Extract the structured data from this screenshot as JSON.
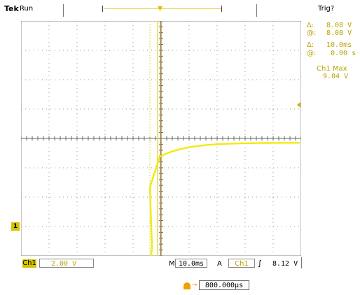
{
  "header": {
    "brand": "Tek",
    "status": "Run",
    "trigger_status": "Trig?"
  },
  "readouts": {
    "delta_label": "Δ:",
    "at_label": "@:",
    "voltage_delta": "8.08 V",
    "voltage_at": "8.08 V",
    "time_delta": "10.0ms",
    "time_at": "0.00 s",
    "measurement_label": "Ch1 Max",
    "measurement_value": "9.04 V"
  },
  "markers": {
    "trigger_marker": "T",
    "ground_marker": "1"
  },
  "bottom_bar": {
    "channel_label": "Ch1",
    "volts_per_div": "2.00 V",
    "timebase_prefix": "M",
    "timebase": "10.0ms",
    "trigger_mode": "A",
    "trigger_source": "Ch1",
    "trigger_slope": "∫",
    "trigger_level": "8.12 V"
  },
  "trigger_position": {
    "value": "800.000µs"
  },
  "colors": {
    "trace": "#f2ea10",
    "cursor": "#e6d84a",
    "readout": "#b8a400",
    "trigger": "#f0a000",
    "grid": "#9a9a9a"
  },
  "waveform": {
    "time_per_div_ms": 10,
    "volts_per_div": 2,
    "baseline_volts": 0,
    "rise_start_ms": -3.5,
    "rise_end_ms": 0,
    "level_at_cursor_volts": 8.08,
    "max_volts": 9.04,
    "ground_div_below_center": 5
  }
}
